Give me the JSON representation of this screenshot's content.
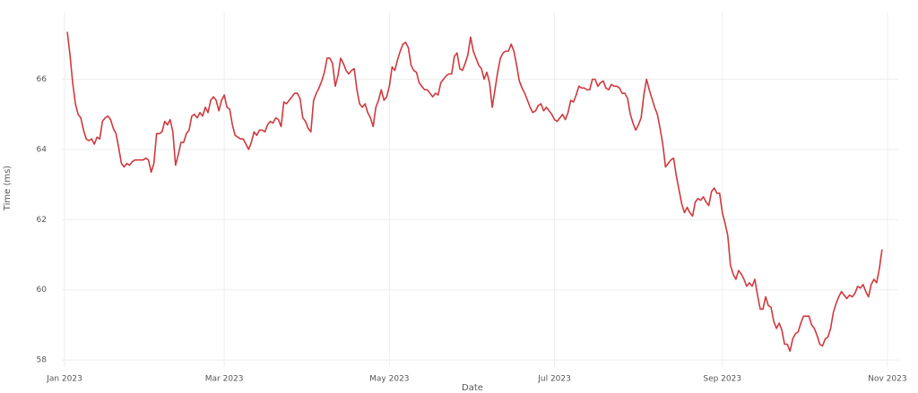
{
  "chart_data": {
    "type": "line",
    "xlabel": "Date",
    "ylabel": "Time (ms)",
    "x": [
      1,
      2,
      3,
      4,
      5,
      6,
      7,
      8,
      9,
      10,
      11,
      12,
      13,
      14,
      15,
      16,
      17,
      18,
      19,
      20,
      21,
      22,
      23,
      24,
      25,
      26,
      27,
      28,
      29,
      30,
      31,
      32,
      33,
      34,
      35,
      36,
      37,
      38,
      39,
      40,
      41,
      42,
      43,
      44,
      45,
      46,
      47,
      48,
      49,
      50,
      51,
      52,
      53,
      54,
      55,
      56,
      57,
      58,
      59,
      60,
      61,
      62,
      63,
      64,
      65,
      66,
      67,
      68,
      69,
      70,
      71,
      72,
      73,
      74,
      75,
      76,
      77,
      78,
      79,
      80,
      81,
      82,
      83,
      84,
      85,
      86,
      87,
      88,
      89,
      90,
      91,
      92,
      93,
      94,
      95,
      96,
      97,
      98,
      99,
      100,
      101,
      102,
      103,
      104,
      105,
      106,
      107,
      108,
      109,
      110,
      111,
      112,
      113,
      114,
      115,
      116,
      117,
      118,
      119,
      120,
      121,
      122,
      123,
      124,
      125,
      126,
      127,
      128,
      129,
      130,
      131,
      132,
      133,
      134,
      135,
      136,
      137,
      138,
      139,
      140,
      141,
      142,
      143,
      144,
      145,
      146,
      147,
      148,
      149,
      150,
      151,
      152,
      153,
      154,
      155,
      156,
      157,
      158,
      159,
      160,
      161,
      162,
      163,
      164,
      165,
      166,
      167,
      168,
      169,
      170,
      171,
      172,
      173,
      174,
      175,
      176,
      177,
      178,
      179,
      180,
      181,
      182,
      183,
      184,
      185,
      186,
      187,
      188,
      189,
      190,
      191,
      192,
      193,
      194,
      195,
      196,
      197,
      198,
      199,
      200,
      201,
      202,
      203,
      204,
      205,
      206,
      207,
      208,
      209,
      210,
      211,
      212,
      213,
      214,
      215,
      216,
      217,
      218,
      219,
      220,
      221,
      222,
      223,
      224,
      225,
      226,
      227,
      228,
      229,
      230,
      231,
      232,
      233,
      234,
      235,
      236,
      237,
      238,
      239,
      240,
      241,
      242,
      243,
      244,
      245,
      246,
      247,
      248,
      249,
      250,
      251,
      252,
      253,
      254,
      255,
      256,
      257,
      258,
      259,
      260,
      261,
      262,
      263,
      264,
      265,
      266,
      267,
      268,
      269,
      270,
      271,
      272,
      273,
      274,
      275,
      276,
      277,
      278,
      279,
      280,
      281,
      282,
      283,
      284,
      285,
      286,
      287,
      288,
      289,
      290,
      291,
      292,
      293,
      294,
      295,
      296,
      297,
      298,
      299,
      300,
      301,
      302
    ],
    "series": [
      {
        "color": "#d0393e",
        "values": [
          67.35,
          66.7,
          65.9,
          65.3,
          65.0,
          64.9,
          64.55,
          64.3,
          64.25,
          64.3,
          64.15,
          64.35,
          64.3,
          64.8,
          64.9,
          64.95,
          64.85,
          64.6,
          64.45,
          64.05,
          63.6,
          63.5,
          63.6,
          63.55,
          63.65,
          63.7,
          63.7,
          63.7,
          63.7,
          63.75,
          63.7,
          63.35,
          63.6,
          64.45,
          64.45,
          64.5,
          64.8,
          64.7,
          64.85,
          64.5,
          63.55,
          63.85,
          64.2,
          64.2,
          64.45,
          64.55,
          64.95,
          65.0,
          64.9,
          65.05,
          64.95,
          65.2,
          65.05,
          65.4,
          65.5,
          65.4,
          65.1,
          65.4,
          65.55,
          65.2,
          65.15,
          64.7,
          64.4,
          64.35,
          64.3,
          64.3,
          64.15,
          64.0,
          64.2,
          64.5,
          64.4,
          64.55,
          64.55,
          64.5,
          64.7,
          64.8,
          64.75,
          64.9,
          64.85,
          64.65,
          65.35,
          65.3,
          65.4,
          65.5,
          65.6,
          65.6,
          65.45,
          64.9,
          64.8,
          64.6,
          64.5,
          65.4,
          65.6,
          65.75,
          65.95,
          66.2,
          66.6,
          66.6,
          66.45,
          65.8,
          66.1,
          66.6,
          66.45,
          66.25,
          66.15,
          66.25,
          66.3,
          65.7,
          65.3,
          65.2,
          65.3,
          65.05,
          64.9,
          64.65,
          65.2,
          65.4,
          65.7,
          65.4,
          65.5,
          65.8,
          66.35,
          66.25,
          66.55,
          66.8,
          67.0,
          67.05,
          66.9,
          66.4,
          66.25,
          66.2,
          65.9,
          65.8,
          65.7,
          65.7,
          65.6,
          65.5,
          65.6,
          65.55,
          65.9,
          66.0,
          66.1,
          66.15,
          66.15,
          66.65,
          66.75,
          66.3,
          66.25,
          66.45,
          66.7,
          67.2,
          66.8,
          66.6,
          66.4,
          66.3,
          66.0,
          66.2,
          65.9,
          65.2,
          65.7,
          66.2,
          66.6,
          66.75,
          66.8,
          66.8,
          67.0,
          66.8,
          66.4,
          65.95,
          65.75,
          65.6,
          65.4,
          65.2,
          65.05,
          65.1,
          65.25,
          65.3,
          65.1,
          65.2,
          65.1,
          65.0,
          64.85,
          64.8,
          64.9,
          65.0,
          64.85,
          65.05,
          65.4,
          65.35,
          65.55,
          65.8,
          65.75,
          65.75,
          65.7,
          65.7,
          66.0,
          66.0,
          65.8,
          65.9,
          65.95,
          65.75,
          65.7,
          65.85,
          65.8,
          65.8,
          65.75,
          65.6,
          65.6,
          65.45,
          65.0,
          64.75,
          64.55,
          64.7,
          64.9,
          65.55,
          66.0,
          65.7,
          65.45,
          65.2,
          65.0,
          64.6,
          64.15,
          63.5,
          63.6,
          63.7,
          63.75,
          63.25,
          62.85,
          62.45,
          62.2,
          62.35,
          62.2,
          62.1,
          62.5,
          62.6,
          62.55,
          62.65,
          62.5,
          62.4,
          62.8,
          62.9,
          62.75,
          62.75,
          62.2,
          61.9,
          61.55,
          60.7,
          60.45,
          60.3,
          60.55,
          60.45,
          60.3,
          60.1,
          60.2,
          60.1,
          60.3,
          59.85,
          59.45,
          59.45,
          59.8,
          59.55,
          59.5,
          59.1,
          58.9,
          59.05,
          58.85,
          58.45,
          58.45,
          58.25,
          58.6,
          58.75,
          58.8,
          59.05,
          59.25,
          59.25,
          59.25,
          59.0,
          58.9,
          58.7,
          58.45,
          58.4,
          58.6,
          58.65,
          58.9,
          59.35,
          59.6,
          59.8,
          59.95,
          59.85,
          59.75,
          59.85,
          59.8,
          59.9,
          60.1,
          60.05,
          60.15,
          59.95,
          59.8,
          60.15,
          60.3,
          60.2,
          60.6,
          61.15
        ]
      }
    ],
    "xlim": [
      -1,
      308
    ],
    "xticks": [
      {
        "value": 0,
        "label": "Jan 2023"
      },
      {
        "value": 59,
        "label": "Mar 2023"
      },
      {
        "value": 120,
        "label": "May 2023"
      },
      {
        "value": 181,
        "label": "Jul 2023"
      },
      {
        "value": 243,
        "label": "Sep 2023"
      },
      {
        "value": 304,
        "label": "Nov 2023"
      }
    ],
    "ylim": [
      57.8,
      67.9
    ],
    "yticks": [
      58,
      60,
      62,
      64,
      66
    ],
    "grid": true
  }
}
